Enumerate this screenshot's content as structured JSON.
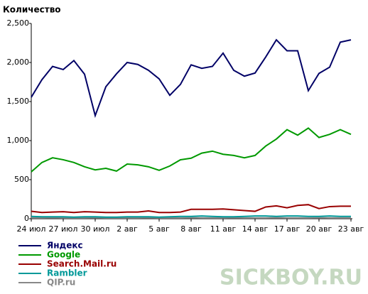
{
  "chart_data": {
    "type": "line",
    "title": "Количество",
    "categories": [
      "24 июл",
      null,
      null,
      "27 июл",
      null,
      null,
      "30 июл",
      null,
      null,
      "2 авг",
      null,
      null,
      "5 авг",
      null,
      null,
      "8 авг",
      null,
      null,
      "11 авг",
      null,
      null,
      "14 авг",
      null,
      null,
      "17 авг",
      null,
      null,
      "20 авг",
      null,
      null,
      "23 авг"
    ],
    "series": [
      {
        "name": "Яндекс",
        "color": "#000066",
        "values": [
          1555,
          1780,
          1950,
          1910,
          2025,
          1850,
          1320,
          1690,
          1855,
          2000,
          1975,
          1900,
          1790,
          1580,
          1720,
          1970,
          1925,
          1950,
          2120,
          1900,
          1825,
          1865,
          2070,
          2290,
          2150,
          2150,
          1640,
          1860,
          1940,
          2260,
          2290
        ]
      },
      {
        "name": "Google",
        "color": "#009900",
        "values": [
          600,
          720,
          780,
          755,
          720,
          665,
          625,
          645,
          610,
          700,
          690,
          665,
          620,
          675,
          755,
          775,
          840,
          865,
          825,
          810,
          780,
          810,
          930,
          1020,
          1140,
          1070,
          1160,
          1040,
          1080,
          1140,
          1080
        ]
      },
      {
        "name": "Search.Mail.ru",
        "color": "#990000",
        "values": [
          95,
          80,
          85,
          90,
          80,
          90,
          85,
          80,
          80,
          85,
          85,
          100,
          80,
          80,
          85,
          120,
          120,
          120,
          125,
          115,
          105,
          95,
          150,
          165,
          140,
          170,
          180,
          130,
          155,
          160,
          160
        ]
      },
      {
        "name": "Rambler",
        "color": "#009999",
        "values": [
          30,
          25,
          25,
          25,
          20,
          25,
          25,
          20,
          20,
          25,
          25,
          25,
          20,
          25,
          30,
          30,
          35,
          30,
          25,
          25,
          30,
          35,
          35,
          30,
          35,
          35,
          30,
          30,
          35,
          30,
          30
        ]
      },
      {
        "name": "QIP.ru",
        "color": "#888888",
        "values": [
          10,
          10,
          12,
          10,
          10,
          10,
          12,
          10,
          10,
          10,
          10,
          12,
          10,
          10,
          10,
          12,
          10,
          10,
          10,
          12,
          10,
          10,
          10,
          12,
          10,
          10,
          10,
          12,
          10,
          10,
          10
        ]
      }
    ],
    "ylim": [
      0,
      2500
    ],
    "yticks": [
      0,
      500,
      {
        "value": 1000,
        "label": "1,000"
      },
      {
        "value": 1500,
        "label": "1,500"
      },
      {
        "value": 2000,
        "label": "2,000"
      },
      {
        "value": 2500,
        "label": "2,500"
      }
    ],
    "grid": false
  },
  "watermark": "SICKBOY.RU"
}
